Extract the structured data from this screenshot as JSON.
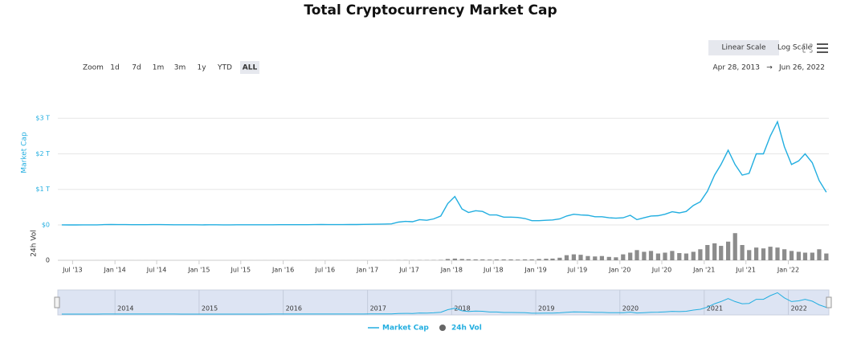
{
  "chart_data": {
    "type": "line",
    "title": "Total Cryptocurrency Market Cap",
    "y_label": "Market Cap",
    "y2_label": "24h Vol",
    "controls": {
      "linear": "Linear Scale",
      "log": "Log Scale",
      "zoom": "Zoom",
      "zoom_buttons": [
        "1d",
        "7d",
        "1m",
        "3m",
        "1y",
        "YTD",
        "ALL"
      ],
      "active_zoom": 6,
      "range_from": "Apr 28, 2013",
      "range_arrow": "→",
      "range_to": "Jun 26, 2022"
    },
    "x": [
      "2013-05",
      "2013-06",
      "2013-07",
      "2013-08",
      "2013-09",
      "2013-10",
      "2013-11",
      "2013-12",
      "2014-01",
      "2014-02",
      "2014-03",
      "2014-04",
      "2014-05",
      "2014-06",
      "2014-07",
      "2014-08",
      "2014-09",
      "2014-10",
      "2014-11",
      "2014-12",
      "2015-01",
      "2015-02",
      "2015-03",
      "2015-04",
      "2015-05",
      "2015-06",
      "2015-07",
      "2015-08",
      "2015-09",
      "2015-10",
      "2015-11",
      "2015-12",
      "2016-01",
      "2016-02",
      "2016-03",
      "2016-04",
      "2016-05",
      "2016-06",
      "2016-07",
      "2016-08",
      "2016-09",
      "2016-10",
      "2016-11",
      "2016-12",
      "2017-01",
      "2017-02",
      "2017-03",
      "2017-04",
      "2017-05",
      "2017-06",
      "2017-07",
      "2017-08",
      "2017-09",
      "2017-10",
      "2017-11",
      "2017-12",
      "2018-01",
      "2018-02",
      "2018-03",
      "2018-04",
      "2018-05",
      "2018-06",
      "2018-07",
      "2018-08",
      "2018-09",
      "2018-10",
      "2018-11",
      "2018-12",
      "2019-01",
      "2019-02",
      "2019-03",
      "2019-04",
      "2019-05",
      "2019-06",
      "2019-07",
      "2019-08",
      "2019-09",
      "2019-10",
      "2019-11",
      "2019-12",
      "2020-01",
      "2020-02",
      "2020-03",
      "2020-04",
      "2020-05",
      "2020-06",
      "2020-07",
      "2020-08",
      "2020-09",
      "2020-10",
      "2020-11",
      "2020-12",
      "2021-01",
      "2021-02",
      "2021-03",
      "2021-04",
      "2021-05",
      "2021-06",
      "2021-07",
      "2021-08",
      "2021-09",
      "2021-10",
      "2021-11",
      "2021-12",
      "2022-01",
      "2022-02",
      "2022-03",
      "2022-04",
      "2022-05",
      "2022-06"
    ],
    "series": [
      {
        "name": "Market Cap",
        "color": "#22aee0",
        "values": [
          0.0013,
          0.0011,
          0.001,
          0.0012,
          0.0015,
          0.002,
          0.01,
          0.012,
          0.01,
          0.008,
          0.006,
          0.006,
          0.007,
          0.008,
          0.008,
          0.007,
          0.0055,
          0.0045,
          0.005,
          0.0045,
          0.003,
          0.0035,
          0.0035,
          0.0033,
          0.0033,
          0.0036,
          0.0041,
          0.0035,
          0.0036,
          0.0045,
          0.0055,
          0.0065,
          0.007,
          0.0065,
          0.0068,
          0.0072,
          0.0085,
          0.011,
          0.01,
          0.0095,
          0.0097,
          0.011,
          0.012,
          0.015,
          0.018,
          0.02,
          0.025,
          0.03,
          0.08,
          0.1,
          0.09,
          0.15,
          0.13,
          0.17,
          0.25,
          0.6,
          0.8,
          0.45,
          0.35,
          0.4,
          0.38,
          0.28,
          0.28,
          0.22,
          0.22,
          0.21,
          0.18,
          0.12,
          0.12,
          0.13,
          0.14,
          0.17,
          0.25,
          0.3,
          0.28,
          0.27,
          0.23,
          0.23,
          0.2,
          0.19,
          0.2,
          0.27,
          0.15,
          0.2,
          0.25,
          0.26,
          0.3,
          0.37,
          0.34,
          0.38,
          0.55,
          0.65,
          0.95,
          1.4,
          1.7,
          2.1,
          1.7,
          1.4,
          1.45,
          2.0,
          2.0,
          2.5,
          2.9,
          2.2,
          1.7,
          1.8,
          2.0,
          1.75,
          1.25,
          0.92
        ]
      },
      {
        "name": "24h Vol",
        "color": "#666666",
        "axis": "y2",
        "values": [
          0.02,
          0.02,
          0.02,
          0.02,
          0.02,
          0.03,
          0.1,
          0.1,
          0.05,
          0.05,
          0.04,
          0.03,
          0.03,
          0.03,
          0.02,
          0.02,
          0.02,
          0.02,
          0.02,
          0.02,
          0.03,
          0.02,
          0.02,
          0.02,
          0.02,
          0.02,
          0.03,
          0.03,
          0.03,
          0.04,
          0.08,
          0.05,
          0.05,
          0.05,
          0.05,
          0.05,
          0.06,
          0.1,
          0.1,
          0.08,
          0.06,
          0.07,
          0.1,
          0.15,
          0.2,
          0.2,
          0.3,
          0.4,
          1.5,
          1.8,
          1.2,
          2,
          2,
          2.5,
          4,
          15,
          20,
          15,
          12,
          10,
          10,
          8,
          10,
          10,
          10,
          8,
          10,
          10,
          15,
          18,
          20,
          30,
          60,
          70,
          65,
          50,
          45,
          50,
          40,
          35,
          70,
          90,
          120,
          100,
          110,
          80,
          90,
          110,
          85,
          80,
          100,
          130,
          180,
          200,
          170,
          220,
          320,
          180,
          120,
          150,
          140,
          160,
          150,
          130,
          110,
          100,
          90,
          90,
          130,
          80
        ]
      }
    ],
    "xlim": [
      "2013-04-28",
      "2022-06-26"
    ],
    "xticks": [
      {
        "value": "2013-07-01",
        "label": "Jul '13"
      },
      {
        "value": "2014-01-01",
        "label": "Jan '14"
      },
      {
        "value": "2014-07-01",
        "label": "Jul '14"
      },
      {
        "value": "2015-01-01",
        "label": "Jan '15"
      },
      {
        "value": "2015-07-01",
        "label": "Jul '15"
      },
      {
        "value": "2016-01-01",
        "label": "Jan '16"
      },
      {
        "value": "2016-07-01",
        "label": "Jul '16"
      },
      {
        "value": "2017-01-01",
        "label": "Jan '17"
      },
      {
        "value": "2017-07-01",
        "label": "Jul '17"
      },
      {
        "value": "2018-01-01",
        "label": "Jan '18"
      },
      {
        "value": "2018-07-01",
        "label": "Jul '18"
      },
      {
        "value": "2019-01-01",
        "label": "Jan '19"
      },
      {
        "value": "2019-07-01",
        "label": "Jul '19"
      },
      {
        "value": "2020-01-01",
        "label": "Jan '20"
      },
      {
        "value": "2020-07-01",
        "label": "Jul '20"
      },
      {
        "value": "2021-01-01",
        "label": "Jan '21"
      },
      {
        "value": "2021-07-01",
        "label": "Jul '21"
      },
      {
        "value": "2022-01-01",
        "label": "Jan '22"
      }
    ],
    "ylim": [
      0,
      3.05
    ],
    "yticks": [
      {
        "value": 0,
        "label": "$0"
      },
      {
        "value": 1,
        "label": "$1 T"
      },
      {
        "value": 2,
        "label": "$2 T"
      },
      {
        "value": 3,
        "label": "$3 T"
      }
    ],
    "y2lim": [
      0,
      360
    ],
    "y2ticks": [
      0
    ],
    "navigator_ticks": [
      {
        "value": "2014-01-01",
        "label": "2014"
      },
      {
        "value": "2015-01-01",
        "label": "2015"
      },
      {
        "value": "2016-01-01",
        "label": "2016"
      },
      {
        "value": "2017-01-01",
        "label": "2017"
      },
      {
        "value": "2018-01-01",
        "label": "2018"
      },
      {
        "value": "2019-01-01",
        "label": "2019"
      },
      {
        "value": "2020-01-01",
        "label": "2020"
      },
      {
        "value": "2021-01-01",
        "label": "2021"
      },
      {
        "value": "2022-01-01",
        "label": "2022"
      }
    ],
    "grid": true
  }
}
